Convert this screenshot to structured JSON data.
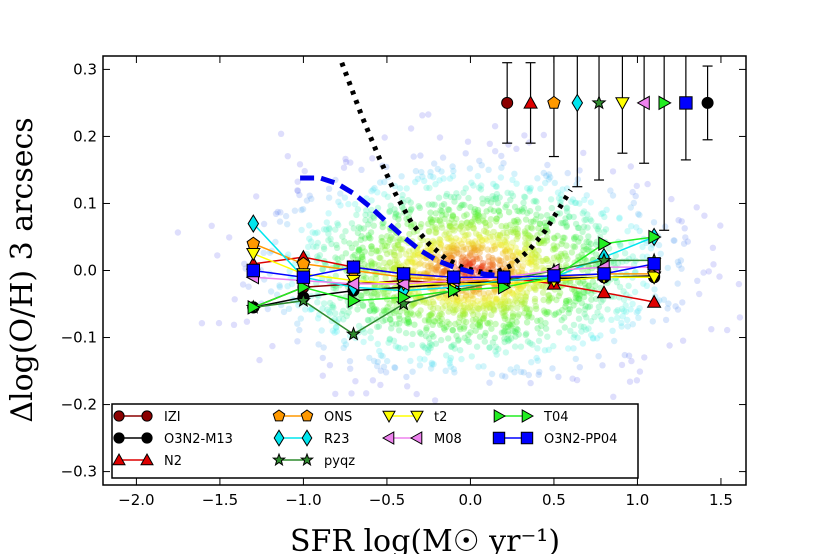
{
  "chart_data": {
    "type": "line",
    "title": "",
    "xlabel": "SFR log(M☉ yr⁻¹)",
    "ylabel": "Δlog(O/H) 3 arcsecs",
    "xlim": [
      -2.2,
      1.65
    ],
    "ylim": [
      -0.32,
      0.32
    ],
    "xticks": [
      -2.0,
      -1.5,
      -1.0,
      -0.5,
      0.0,
      0.5,
      1.0,
      1.5
    ],
    "xtick_labels": [
      "−2.0",
      "−1.5",
      "−1.0",
      "−0.5",
      "0.0",
      "0.5",
      "1.0",
      "1.5"
    ],
    "yticks": [
      -0.3,
      -0.2,
      -0.1,
      0.0,
      0.1,
      0.2,
      0.3
    ],
    "ytick_labels": [
      "−0.3",
      "−0.2",
      "−0.1",
      "0.0",
      "0.1",
      "0.2",
      "0.3"
    ],
    "x": [
      -1.3,
      -1.0,
      -0.7,
      -0.4,
      -0.1,
      0.2,
      0.5,
      0.8,
      1.1
    ],
    "series": [
      {
        "name": "IZI",
        "color": "#8b0000",
        "marker": "circle",
        "values": [
          -0.055,
          -0.025,
          -0.02,
          -0.015,
          -0.02,
          -0.02,
          -0.015,
          -0.01,
          -0.01
        ]
      },
      {
        "name": "O3N2-M13",
        "color": "#000000",
        "marker": "circle",
        "values": [
          -0.055,
          -0.04,
          -0.03,
          -0.025,
          -0.02,
          -0.015,
          -0.012,
          -0.01,
          -0.008
        ]
      },
      {
        "name": "N2",
        "color": "#dd0000",
        "marker": "triangle-up",
        "values": [
          0.01,
          0.02,
          0.005,
          -0.005,
          -0.01,
          -0.01,
          -0.02,
          -0.033,
          -0.047
        ]
      },
      {
        "name": "ONS",
        "color": "#ff9900",
        "marker": "pentagon",
        "values": [
          0.04,
          0.01,
          0.0,
          -0.01,
          -0.015,
          -0.015,
          -0.01,
          -0.005,
          -0.005
        ]
      },
      {
        "name": "R23",
        "color": "#00e5ee",
        "marker": "diamond",
        "values": [
          0.07,
          -0.01,
          -0.025,
          -0.03,
          -0.025,
          -0.015,
          -0.01,
          0.02,
          0.05
        ]
      },
      {
        "name": "pyqz",
        "color": "#2e8b2e",
        "marker": "star",
        "values": [
          -0.055,
          -0.045,
          -0.095,
          -0.05,
          -0.03,
          -0.015,
          0.0,
          0.015,
          0.015
        ]
      },
      {
        "name": "t2",
        "color": "#ffff00",
        "marker": "triangle-down",
        "values": [
          0.025,
          -0.005,
          -0.015,
          -0.02,
          -0.02,
          -0.02,
          -0.015,
          -0.01,
          -0.01
        ]
      },
      {
        "name": "M08",
        "color": "#ee82ee",
        "marker": "triangle-left",
        "values": [
          -0.01,
          -0.015,
          -0.02,
          -0.02,
          -0.015,
          -0.01,
          0.0,
          0.005,
          0.005
        ]
      },
      {
        "name": "T04",
        "color": "#22ee22",
        "marker": "triangle-right",
        "values": [
          -0.055,
          -0.025,
          -0.045,
          -0.04,
          -0.03,
          -0.025,
          -0.01,
          0.04,
          0.05
        ]
      },
      {
        "name": "O3N2-PP04",
        "color": "#0000ff",
        "marker": "square",
        "values": [
          0.0,
          -0.01,
          0.005,
          -0.005,
          -0.01,
          -0.01,
          -0.008,
          -0.005,
          0.01
        ]
      }
    ],
    "error_bars": {
      "y": 0.25,
      "items": [
        {
          "name": "IZI",
          "x": 0.22,
          "err": 0.06
        },
        {
          "name": "N2",
          "x": 0.36,
          "err": 0.06
        },
        {
          "name": "ONS",
          "x": 0.5,
          "err": 0.08
        },
        {
          "name": "R23",
          "x": 0.64,
          "err": 0.125
        },
        {
          "name": "pyqz",
          "x": 0.77,
          "err": 0.115
        },
        {
          "name": "t2",
          "x": 0.91,
          "err": 0.075
        },
        {
          "name": "M08",
          "x": 1.04,
          "err": 0.09
        },
        {
          "name": "T04",
          "x": 1.16,
          "err": 0.19
        },
        {
          "name": "O3N2-PP04",
          "x": 1.29,
          "err": 0.085
        },
        {
          "name": "O3N2-M13",
          "x": 1.42,
          "err": 0.055
        }
      ]
    },
    "curves": [
      {
        "name": "model-black-dotted",
        "color": "#000000",
        "style": "dotted",
        "x": [
          -0.77,
          -0.65,
          -0.55,
          -0.45,
          -0.35,
          -0.25,
          -0.15,
          -0.05,
          0.05,
          0.15,
          0.25,
          0.35,
          0.45,
          0.55,
          0.6
        ],
        "y": [
          0.31,
          0.23,
          0.17,
          0.115,
          0.07,
          0.04,
          0.018,
          0.005,
          -0.002,
          -0.003,
          0.008,
          0.03,
          0.06,
          0.1,
          0.12
        ]
      },
      {
        "name": "model-blue-dashed",
        "color": "#0000ee",
        "style": "dashed",
        "x": [
          -1.02,
          -0.9,
          -0.8,
          -0.7,
          -0.6,
          -0.5,
          -0.4,
          -0.3,
          -0.2,
          -0.1,
          0.0,
          0.1,
          0.2
        ],
        "y": [
          0.138,
          0.138,
          0.13,
          0.115,
          0.095,
          0.072,
          0.05,
          0.03,
          0.015,
          0.005,
          -0.002,
          -0.006,
          -0.008
        ]
      }
    ],
    "legend": {
      "position": "lower-left",
      "columns": [
        [
          "IZI",
          "O3N2-M13",
          "N2"
        ],
        [
          "ONS",
          "R23",
          "pyqz"
        ],
        [
          "t2",
          "M08"
        ],
        [
          "T04",
          "O3N2-PP04"
        ]
      ]
    },
    "background_scatter": {
      "description_visible": false,
      "colormap": "density rainbow",
      "n": 2200,
      "x_center": 0.0,
      "y_center": 0.0
    }
  }
}
